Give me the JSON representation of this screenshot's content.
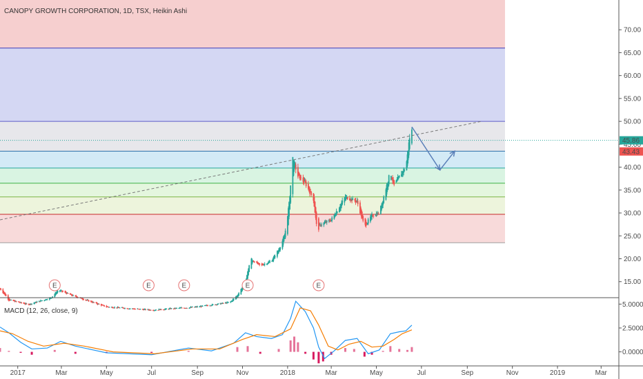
{
  "chart_data": [
    {
      "type": "candlestick",
      "title": "CANOPY GROWTH CORPORATION, 1D, TSX, Heikin Ashi",
      "ylim": [
        11.5,
        76.5
      ],
      "y_ticks": [
        "15.00",
        "20.00",
        "25.00",
        "30.00",
        "35.00",
        "40.00",
        "45.00",
        "50.00",
        "55.00",
        "60.00",
        "65.00",
        "70.00"
      ],
      "price_labels": [
        {
          "value": 45.86,
          "text": "45.86",
          "color": "#26a69a"
        },
        {
          "value": 43.43,
          "text": "43.43",
          "color": "#ef5350"
        }
      ],
      "zones": [
        {
          "from": 66.0,
          "to": 76.5,
          "color": "#f4c7c7"
        },
        {
          "from": 50.0,
          "to": 66.0,
          "color": "#cdd0f1"
        },
        {
          "from": 43.5,
          "to": 50.0,
          "color": "#e3e3e8"
        },
        {
          "from": 39.8,
          "to": 43.5,
          "color": "#cbe6f5"
        },
        {
          "from": 36.5,
          "to": 39.8,
          "color": "#d2f2dd"
        },
        {
          "from": 33.5,
          "to": 36.5,
          "color": "#dff5d8"
        },
        {
          "from": 29.7,
          "to": 33.5,
          "color": "#eaf2d6"
        },
        {
          "from": 23.5,
          "to": 29.7,
          "color": "#f7d3d3"
        }
      ],
      "levels": [
        {
          "value": 66.0,
          "color": "#3a3ab8"
        },
        {
          "value": 50.0,
          "color": "#5c5cc8"
        },
        {
          "value": 43.5,
          "color": "#2b6fa8"
        },
        {
          "value": 39.8,
          "color": "#26a69a"
        },
        {
          "value": 36.5,
          "color": "#3cb043"
        },
        {
          "value": 33.5,
          "color": "#7cb342"
        },
        {
          "value": 29.7,
          "color": "#c62828"
        },
        {
          "value": 23.5,
          "color": "#9e9e9e"
        }
      ],
      "trendline": {
        "x": [
          "2016-12-08",
          "2018-09-20"
        ],
        "y": [
          28.5,
          50.0
        ]
      },
      "projection_arrow": {
        "x": [
          "2018-06-18",
          "2018-07-26",
          "2018-08-15"
        ],
        "y": [
          48.8,
          39.4,
          43.5
        ]
      },
      "earnings_markers": {
        "label": "E",
        "dates": [
          "2017-02-20",
          "2017-06-27",
          "2017-08-14",
          "2017-11-08",
          "2018-02-12"
        ]
      },
      "x_ticks": [
        "2017",
        "Mar",
        "May",
        "Jul",
        "Sep",
        "Nov",
        "2018",
        "Mar",
        "May",
        "Jul",
        "Sep",
        "Nov",
        "2019",
        "Mar"
      ],
      "ohlc_path": [
        {
          "x": "2016-12-08",
          "y": 13.5
        },
        {
          "x": "2016-12-20",
          "y": 11.0
        },
        {
          "x": "2017-01-15",
          "y": 10.0
        },
        {
          "x": "2017-02-15",
          "y": 11.5
        },
        {
          "x": "2017-02-25",
          "y": 13.2
        },
        {
          "x": "2017-03-15",
          "y": 12.0
        },
        {
          "x": "2017-05-01",
          "y": 9.5
        },
        {
          "x": "2017-07-01",
          "y": 8.8
        },
        {
          "x": "2017-09-01",
          "y": 9.5
        },
        {
          "x": "2017-10-15",
          "y": 10.5
        },
        {
          "x": "2017-10-25",
          "y": 12.0
        },
        {
          "x": "2017-11-05",
          "y": 15.0
        },
        {
          "x": "2017-11-12",
          "y": 20.0
        },
        {
          "x": "2017-11-25",
          "y": 18.5
        },
        {
          "x": "2017-12-10",
          "y": 19.5
        },
        {
          "x": "2017-12-20",
          "y": 22.0
        },
        {
          "x": "2017-12-28",
          "y": 25.0
        },
        {
          "x": "2018-01-03",
          "y": 32.0
        },
        {
          "x": "2018-01-08",
          "y": 42.0
        },
        {
          "x": "2018-01-15",
          "y": 38.0
        },
        {
          "x": "2018-01-25",
          "y": 36.5
        },
        {
          "x": "2018-02-05",
          "y": 33.0
        },
        {
          "x": "2018-02-10",
          "y": 26.0
        },
        {
          "x": "2018-02-15",
          "y": 27.5
        },
        {
          "x": "2018-03-01",
          "y": 28.5
        },
        {
          "x": "2018-03-20",
          "y": 33.5
        },
        {
          "x": "2018-04-05",
          "y": 32.5
        },
        {
          "x": "2018-04-15",
          "y": 27.0
        },
        {
          "x": "2018-04-25",
          "y": 29.5
        },
        {
          "x": "2018-05-05",
          "y": 30.0
        },
        {
          "x": "2018-05-20",
          "y": 39.0
        },
        {
          "x": "2018-05-25",
          "y": 36.0
        },
        {
          "x": "2018-06-05",
          "y": 39.0
        },
        {
          "x": "2018-06-10",
          "y": 40.0
        },
        {
          "x": "2018-06-15",
          "y": 46.5
        },
        {
          "x": "2018-06-18",
          "y": 48.0
        }
      ]
    },
    {
      "type": "line",
      "title": "MACD (12, 26, close, 9)",
      "ylim": [
        -1.4,
        5.6
      ],
      "y_ticks": [
        "0.0000",
        "2.5000",
        "5.0000"
      ],
      "series": [
        {
          "color": "#2196f3",
          "points": [
            {
              "x": "2016-12-08",
              "y": 2.6
            },
            {
              "x": "2016-12-20",
              "y": 2.0
            },
            {
              "x": "2017-01-05",
              "y": 1.0
            },
            {
              "x": "2017-01-20",
              "y": 0.3
            },
            {
              "x": "2017-02-10",
              "y": 0.4
            },
            {
              "x": "2017-02-28",
              "y": 1.1
            },
            {
              "x": "2017-03-20",
              "y": 0.6
            },
            {
              "x": "2017-05-01",
              "y": -0.1
            },
            {
              "x": "2017-07-01",
              "y": -0.3
            },
            {
              "x": "2017-08-20",
              "y": 0.4
            },
            {
              "x": "2017-09-20",
              "y": 0.1
            },
            {
              "x": "2017-10-20",
              "y": 0.9
            },
            {
              "x": "2017-11-05",
              "y": 2.0
            },
            {
              "x": "2017-11-20",
              "y": 1.6
            },
            {
              "x": "2017-12-10",
              "y": 1.4
            },
            {
              "x": "2017-12-25",
              "y": 1.8
            },
            {
              "x": "2018-01-05",
              "y": 3.5
            },
            {
              "x": "2018-01-12",
              "y": 5.3
            },
            {
              "x": "2018-01-25",
              "y": 4.2
            },
            {
              "x": "2018-02-05",
              "y": 2.5
            },
            {
              "x": "2018-02-12",
              "y": 0.5
            },
            {
              "x": "2018-02-20",
              "y": -0.7
            },
            {
              "x": "2018-03-05",
              "y": 0.1
            },
            {
              "x": "2018-03-20",
              "y": 1.2
            },
            {
              "x": "2018-04-05",
              "y": 1.4
            },
            {
              "x": "2018-04-20",
              "y": -0.2
            },
            {
              "x": "2018-05-05",
              "y": 0.2
            },
            {
              "x": "2018-05-20",
              "y": 1.9
            },
            {
              "x": "2018-06-01",
              "y": 2.1
            },
            {
              "x": "2018-06-10",
              "y": 2.2
            },
            {
              "x": "2018-06-18",
              "y": 2.8
            }
          ]
        },
        {
          "color": "#f57c00",
          "points": [
            {
              "x": "2016-12-08",
              "y": 2.2
            },
            {
              "x": "2016-12-25",
              "y": 1.9
            },
            {
              "x": "2017-01-15",
              "y": 1.1
            },
            {
              "x": "2017-02-05",
              "y": 0.6
            },
            {
              "x": "2017-03-05",
              "y": 0.9
            },
            {
              "x": "2017-04-01",
              "y": 0.6
            },
            {
              "x": "2017-05-10",
              "y": 0.0
            },
            {
              "x": "2017-07-05",
              "y": -0.2
            },
            {
              "x": "2017-08-25",
              "y": 0.3
            },
            {
              "x": "2017-10-01",
              "y": 0.3
            },
            {
              "x": "2017-11-01",
              "y": 1.3
            },
            {
              "x": "2017-11-20",
              "y": 1.8
            },
            {
              "x": "2017-12-15",
              "y": 1.6
            },
            {
              "x": "2018-01-05",
              "y": 2.4
            },
            {
              "x": "2018-01-18",
              "y": 4.6
            },
            {
              "x": "2018-02-01",
              "y": 4.3
            },
            {
              "x": "2018-02-12",
              "y": 2.8
            },
            {
              "x": "2018-02-25",
              "y": 0.6
            },
            {
              "x": "2018-03-10",
              "y": 0.2
            },
            {
              "x": "2018-03-25",
              "y": 0.8
            },
            {
              "x": "2018-04-10",
              "y": 1.1
            },
            {
              "x": "2018-04-25",
              "y": 0.5
            },
            {
              "x": "2018-05-10",
              "y": 0.6
            },
            {
              "x": "2018-05-25",
              "y": 1.3
            },
            {
              "x": "2018-06-05",
              "y": 1.9
            },
            {
              "x": "2018-06-18",
              "y": 2.3
            }
          ]
        }
      ],
      "histogram_color_positive": "#e57399",
      "histogram_color_negative": "#d81b60",
      "histogram": [
        {
          "x": "2016-12-08",
          "y": 0.4
        },
        {
          "x": "2016-12-20",
          "y": 0.1
        },
        {
          "x": "2017-01-05",
          "y": -0.1
        },
        {
          "x": "2017-01-20",
          "y": -0.3
        },
        {
          "x": "2017-02-20",
          "y": 0.2
        },
        {
          "x": "2017-03-20",
          "y": -0.2
        },
        {
          "x": "2017-05-01",
          "y": -0.1
        },
        {
          "x": "2017-07-01",
          "y": -0.1
        },
        {
          "x": "2017-08-20",
          "y": 0.1
        },
        {
          "x": "2017-10-25",
          "y": 0.5
        },
        {
          "x": "2017-11-08",
          "y": 0.6
        },
        {
          "x": "2017-11-25",
          "y": -0.2
        },
        {
          "x": "2017-12-20",
          "y": 0.3
        },
        {
          "x": "2018-01-05",
          "y": 1.2
        },
        {
          "x": "2018-01-10",
          "y": 1.6
        },
        {
          "x": "2018-01-15",
          "y": 1.0
        },
        {
          "x": "2018-01-25",
          "y": -0.2
        },
        {
          "x": "2018-02-05",
          "y": -0.8
        },
        {
          "x": "2018-02-12",
          "y": -1.2
        },
        {
          "x": "2018-02-18",
          "y": -1.0
        },
        {
          "x": "2018-03-01",
          "y": -0.3
        },
        {
          "x": "2018-03-20",
          "y": 0.4
        },
        {
          "x": "2018-04-01",
          "y": 0.3
        },
        {
          "x": "2018-04-15",
          "y": -0.5
        },
        {
          "x": "2018-04-25",
          "y": -0.3
        },
        {
          "x": "2018-05-10",
          "y": 0.1
        },
        {
          "x": "2018-05-20",
          "y": 0.6
        },
        {
          "x": "2018-06-01",
          "y": 0.3
        },
        {
          "x": "2018-06-12",
          "y": 0.2
        },
        {
          "x": "2018-06-18",
          "y": 0.5
        }
      ]
    }
  ]
}
